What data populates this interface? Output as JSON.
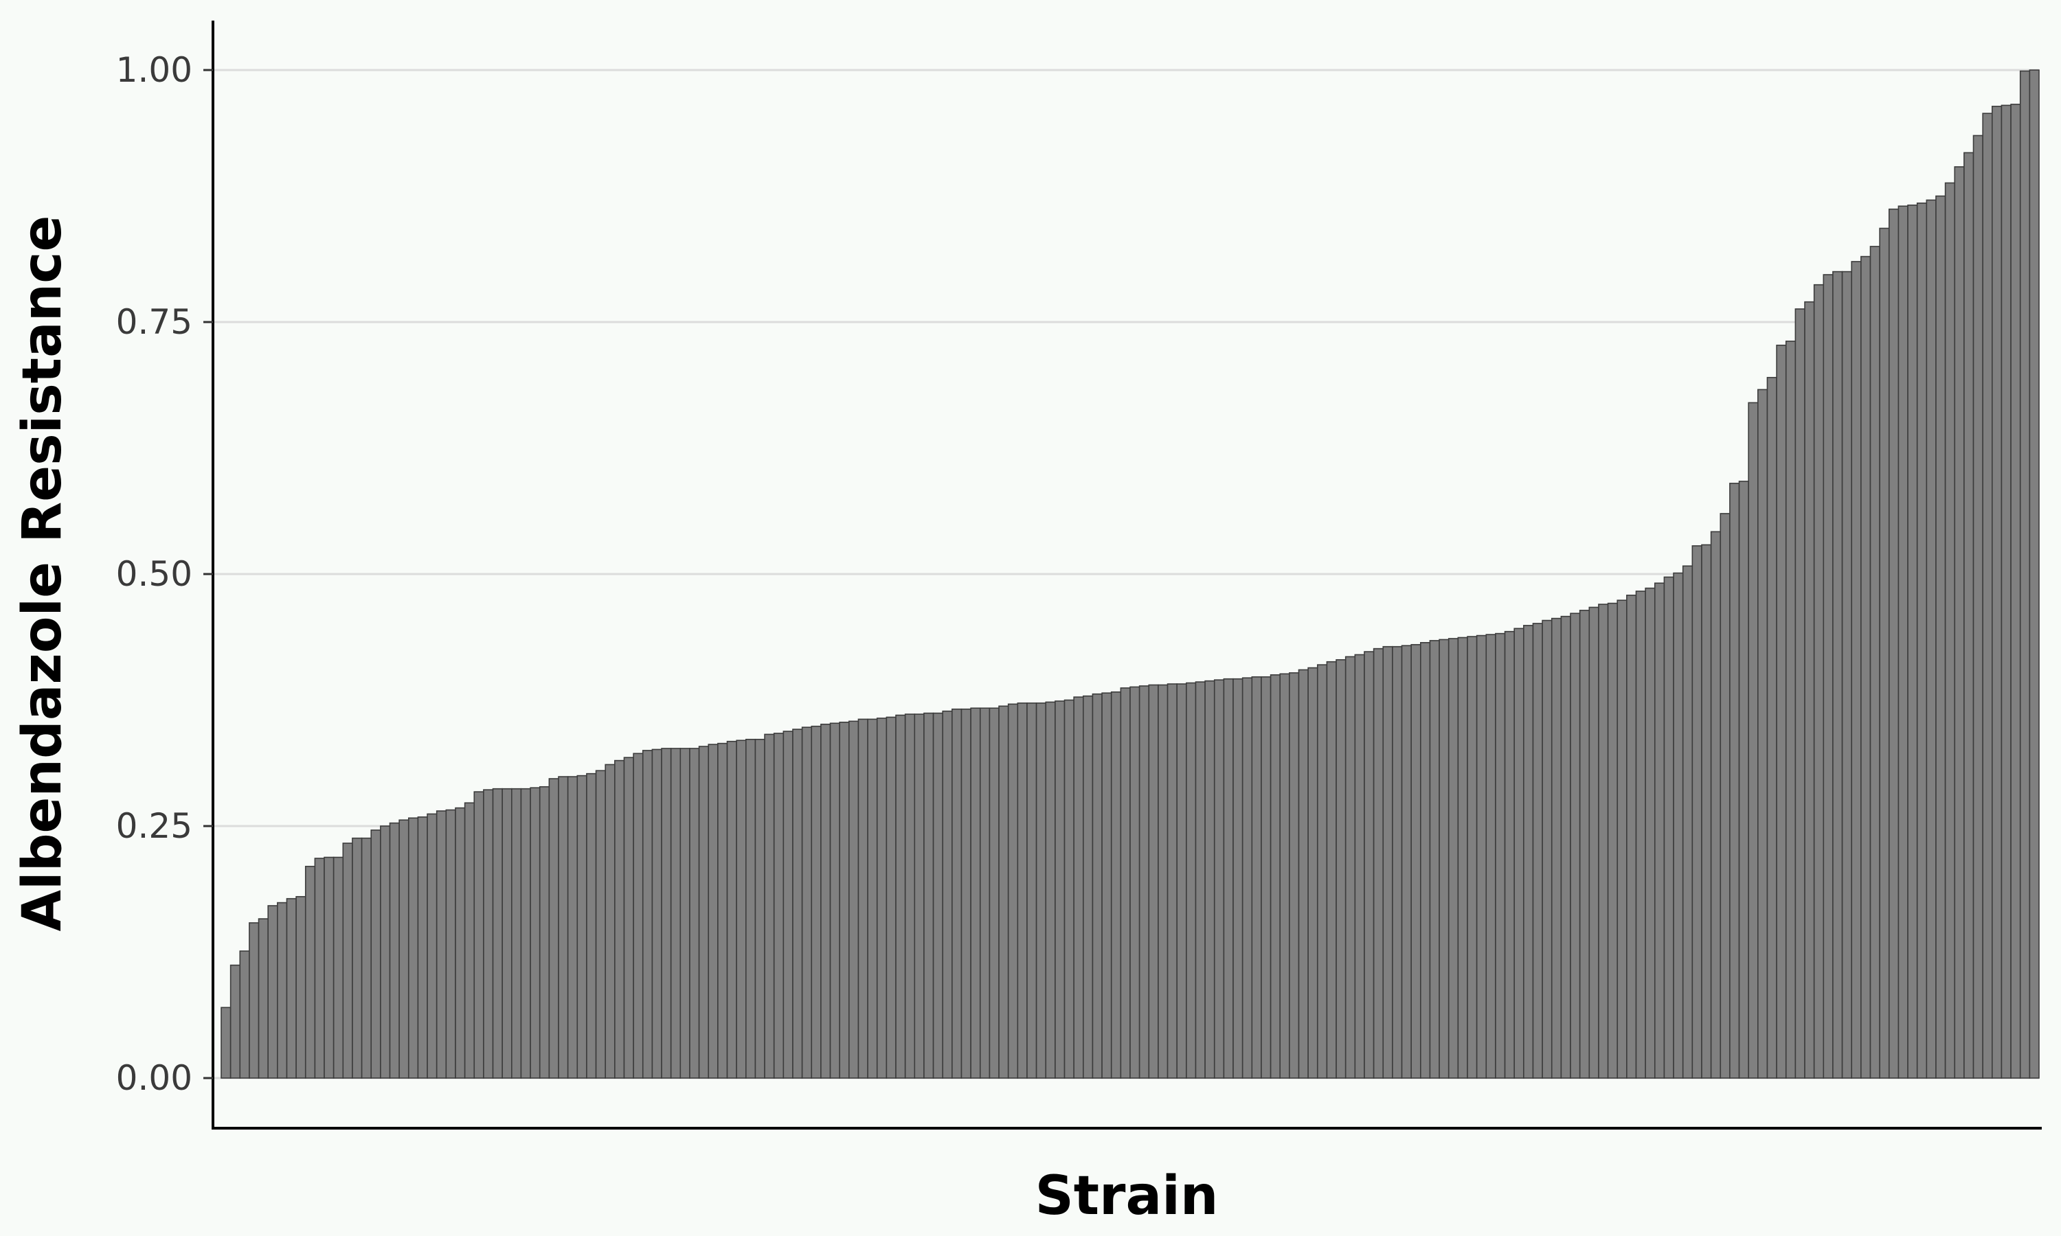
{
  "chart_data": {
    "type": "bar",
    "title": "",
    "xlabel": "Strain",
    "ylabel": "Albendazole Resistance",
    "ylim": [
      0,
      1
    ],
    "yticks": [
      "0.00",
      "0.25",
      "0.50",
      "0.75",
      "1.00"
    ],
    "grid": "horizontal",
    "bar_color": "#808080",
    "bar_edge_color": "#3c3c3c",
    "background": "#f8fbf8",
    "values": [
      0.07,
      0.112,
      0.126,
      0.154,
      0.158,
      0.171,
      0.174,
      0.178,
      0.18,
      0.21,
      0.218,
      0.219,
      0.219,
      0.233,
      0.238,
      0.238,
      0.246,
      0.25,
      0.253,
      0.256,
      0.258,
      0.259,
      0.262,
      0.265,
      0.266,
      0.268,
      0.273,
      0.284,
      0.286,
      0.287,
      0.287,
      0.287,
      0.287,
      0.288,
      0.289,
      0.297,
      0.299,
      0.299,
      0.3,
      0.302,
      0.305,
      0.311,
      0.315,
      0.318,
      0.322,
      0.325,
      0.326,
      0.327,
      0.327,
      0.327,
      0.327,
      0.329,
      0.331,
      0.332,
      0.334,
      0.335,
      0.336,
      0.336,
      0.341,
      0.342,
      0.344,
      0.346,
      0.348,
      0.349,
      0.351,
      0.352,
      0.353,
      0.354,
      0.356,
      0.356,
      0.357,
      0.358,
      0.36,
      0.361,
      0.361,
      0.362,
      0.362,
      0.364,
      0.366,
      0.366,
      0.367,
      0.367,
      0.367,
      0.369,
      0.371,
      0.372,
      0.372,
      0.372,
      0.373,
      0.374,
      0.375,
      0.378,
      0.379,
      0.381,
      0.382,
      0.383,
      0.387,
      0.388,
      0.389,
      0.39,
      0.39,
      0.391,
      0.391,
      0.392,
      0.393,
      0.394,
      0.395,
      0.396,
      0.396,
      0.397,
      0.398,
      0.398,
      0.4,
      0.401,
      0.402,
      0.405,
      0.407,
      0.41,
      0.413,
      0.415,
      0.418,
      0.42,
      0.423,
      0.426,
      0.428,
      0.428,
      0.429,
      0.43,
      0.432,
      0.434,
      0.435,
      0.436,
      0.437,
      0.438,
      0.439,
      0.44,
      0.441,
      0.443,
      0.446,
      0.449,
      0.451,
      0.454,
      0.456,
      0.458,
      0.461,
      0.464,
      0.467,
      0.47,
      0.471,
      0.474,
      0.479,
      0.483,
      0.486,
      0.491,
      0.497,
      0.501,
      0.508,
      0.528,
      0.529,
      0.542,
      0.56,
      0.59,
      0.592,
      0.67,
      0.683,
      0.695,
      0.727,
      0.731,
      0.763,
      0.77,
      0.787,
      0.797,
      0.8,
      0.8,
      0.81,
      0.815,
      0.825,
      0.843,
      0.862,
      0.865,
      0.866,
      0.868,
      0.871,
      0.875,
      0.888,
      0.904,
      0.918,
      0.935,
      0.957,
      0.964,
      0.965,
      0.966,
      0.999,
      1.0
    ]
  }
}
